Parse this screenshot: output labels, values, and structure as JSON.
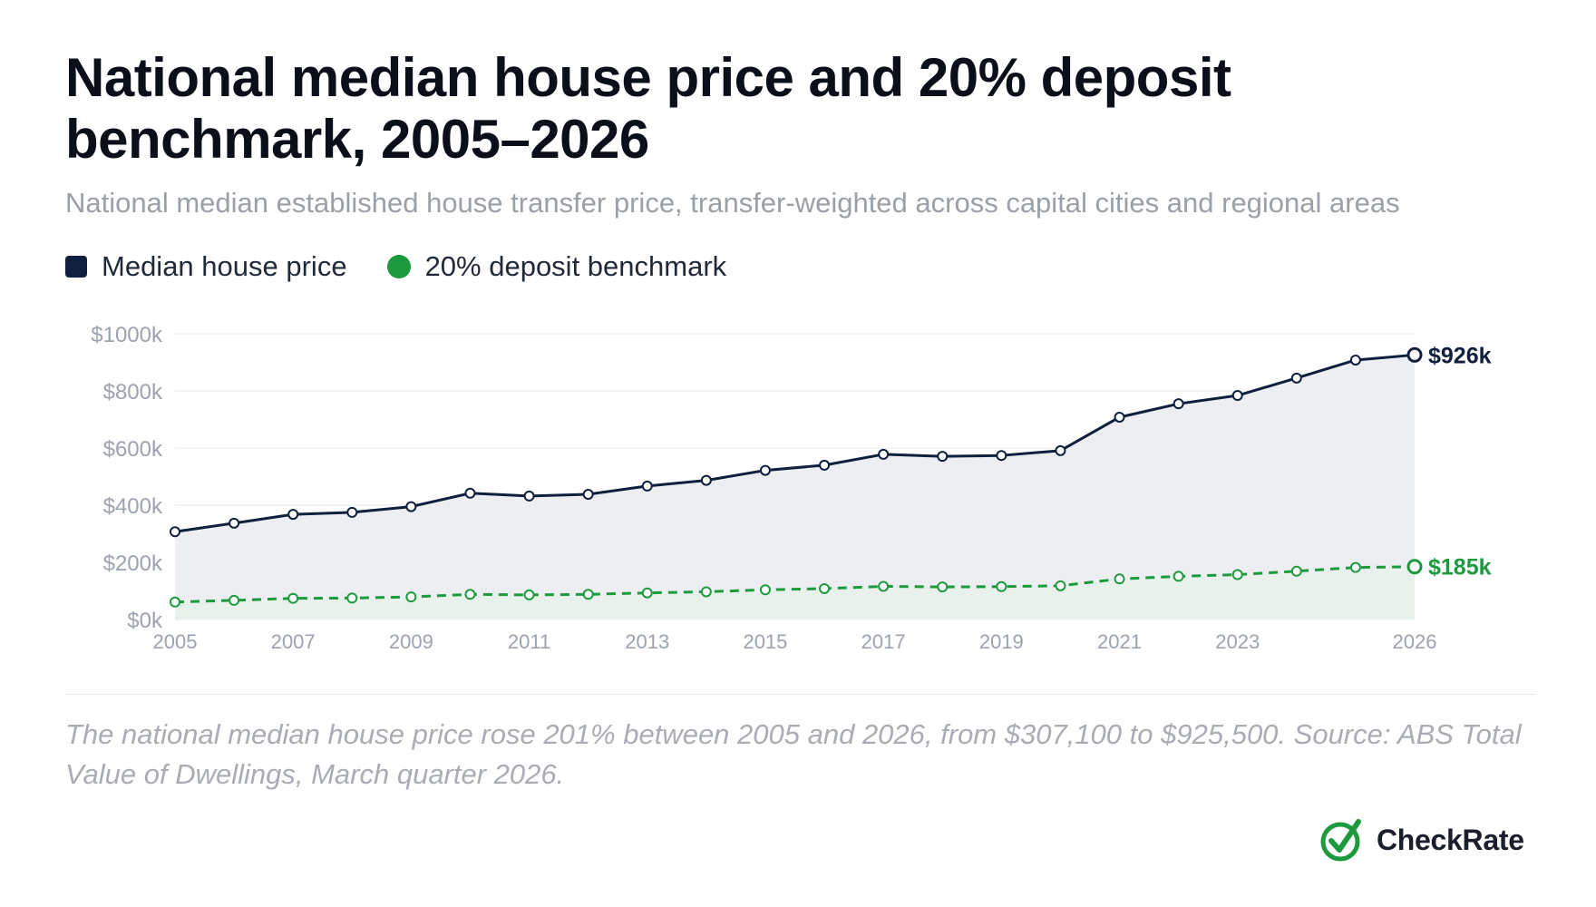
{
  "header": {
    "title": "National median house price and 20% deposit benchmark, 2005–2026",
    "subtitle": "National median established house transfer price, transfer-weighted across capital cities and regional areas"
  },
  "legend": {
    "median_label": "Median house price",
    "deposit_label": "20% deposit benchmark"
  },
  "colors": {
    "median": "#0f1f3d",
    "deposit": "#1e9a3e",
    "median_area": "#eceef2",
    "deposit_area": "#e8f1ec",
    "grid": "#e6e8eb",
    "tick": "#9ca3af"
  },
  "chart_data": {
    "type": "line",
    "x": [
      2005,
      2006,
      2007,
      2008,
      2009,
      2010,
      2011,
      2012,
      2013,
      2014,
      2015,
      2016,
      2017,
      2018,
      2019,
      2020,
      2021,
      2022,
      2023,
      2024,
      2025,
      2026
    ],
    "x_tick_labels": [
      "2005",
      "2007",
      "2009",
      "2011",
      "2013",
      "2015",
      "2017",
      "2019",
      "2021",
      "2023",
      "2026"
    ],
    "y_tick_labels": [
      "$0k",
      "$200k",
      "$400k",
      "$600k",
      "$800k",
      "$1000k"
    ],
    "y_ticks": [
      0,
      200,
      400,
      600,
      800,
      1000
    ],
    "ylim": [
      0,
      1000
    ],
    "y_unit": "thousands of dollars",
    "grid": true,
    "legend_position": "top-left",
    "series": [
      {
        "name": "Median house price",
        "style": "solid",
        "values": [
          307,
          337,
          368,
          375,
          395,
          442,
          432,
          438,
          467,
          487,
          522,
          540,
          578,
          571,
          574,
          591,
          708,
          755,
          784,
          845,
          908,
          926
        ],
        "end_label": "$926k"
      },
      {
        "name": "20% deposit benchmark",
        "style": "dashed",
        "values": [
          61,
          67,
          74,
          75,
          79,
          88,
          86,
          88,
          93,
          97,
          104,
          108,
          116,
          114,
          115,
          118,
          142,
          151,
          157,
          169,
          182,
          185
        ],
        "end_label": "$185k"
      }
    ]
  },
  "caption": "The national median house price rose 201% between 2005 and 2026, from $307,100 to $925,500. Source: ABS Total Value of Dwellings, March quarter 2026.",
  "brand": {
    "name": "CheckRate",
    "icon": "check-circle-icon"
  }
}
